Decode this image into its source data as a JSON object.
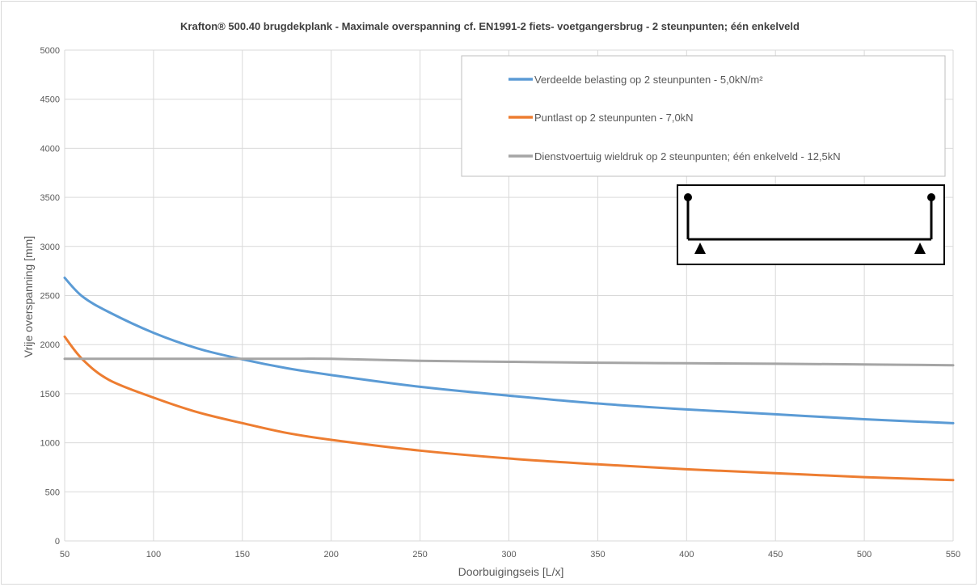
{
  "chart_data": {
    "type": "line",
    "title": "Krafton® 500.40 brugdekplank - Maximale overspanning cf. EN1991-2 fiets- voetgangersbrug - 2 steunpunten; één enkelveld",
    "xlabel": "Doorbuigingseis [L/x]",
    "ylabel": "Vrije overspanning [mm]",
    "xlim": [
      50,
      550
    ],
    "ylim": [
      0,
      5000
    ],
    "x_ticks": [
      50,
      100,
      150,
      200,
      250,
      300,
      350,
      400,
      450,
      500,
      550
    ],
    "y_ticks": [
      0,
      500,
      1000,
      1500,
      2000,
      2500,
      3000,
      3500,
      4000,
      4500,
      5000
    ],
    "x_tick_labels": [
      "50",
      "100",
      "150",
      "200",
      "250",
      "300",
      "350",
      "400",
      "450",
      "500",
      "550"
    ],
    "y_tick_labels": [
      "0",
      "500",
      "1000",
      "1500",
      "2000",
      "2500",
      "3000",
      "3500",
      "4000",
      "4500",
      "5000"
    ],
    "grid": "vertical-and-horizontal",
    "legend_position": "top-right",
    "x": [
      50,
      60,
      75,
      100,
      125,
      150,
      175,
      200,
      250,
      300,
      350,
      400,
      450,
      500,
      550
    ],
    "series": [
      {
        "name": "Verdeelde belasting op 2 steunpunten - 5,0kN/m²",
        "color": "#5b9bd5",
        "values": [
          2680,
          2490,
          2330,
          2120,
          1960,
          1850,
          1760,
          1690,
          1570,
          1480,
          1400,
          1340,
          1290,
          1240,
          1200
        ]
      },
      {
        "name": "Puntlast op 2 steunpunten - 7,0kN",
        "color": "#ed7d31",
        "values": [
          2080,
          1850,
          1640,
          1460,
          1310,
          1200,
          1100,
          1030,
          920,
          840,
          780,
          730,
          690,
          650,
          620
        ]
      },
      {
        "name": "Dienstvoertuig wieldruk op 2 steunpunten; één enkelveld - 12,5kN",
        "color": "#a5a5a5",
        "values": [
          1855,
          1855,
          1855,
          1855,
          1855,
          1855,
          1855,
          1855,
          1835,
          1825,
          1815,
          1810,
          1805,
          1798,
          1790
        ]
      }
    ],
    "inset_icon": "simply-supported-beam-diagram"
  }
}
